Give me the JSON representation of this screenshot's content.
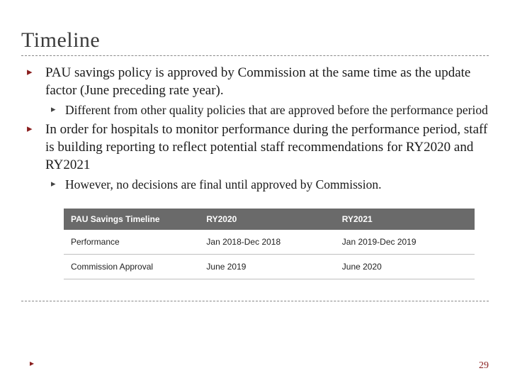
{
  "title": "Timeline",
  "bullets": [
    {
      "text": "PAU savings policy is approved by Commission at the same time as the update factor (June preceding rate year).",
      "sub": [
        "Different from other quality policies that are approved before the performance period"
      ]
    },
    {
      "text": "In order for hospitals to monitor performance during the performance period, staff is building reporting to reflect potential staff recommendations for RY2020 and RY2021",
      "sub": [
        "However, no decisions are final until approved by Commission."
      ]
    }
  ],
  "table": {
    "columns": [
      "PAU Savings Timeline",
      "RY2020",
      "RY2021"
    ],
    "rows": [
      [
        "Performance",
        "Jan 2018-Dec 2018",
        "Jan 2019-Dec 2019"
      ],
      [
        "Commission Approval",
        "June 2019",
        "June 2020"
      ]
    ],
    "header_bg": "#6a6a6a",
    "header_color": "#ffffff",
    "cell_border": "#bfbfbf",
    "font_family": "Arial",
    "header_fontsize": 12,
    "cell_fontsize": 12
  },
  "page_number": "29",
  "colors": {
    "bullet_primary": "#8a1e1e",
    "bullet_secondary": "#444444",
    "title_color": "#3a3a3a",
    "dash_color": "#888888"
  }
}
